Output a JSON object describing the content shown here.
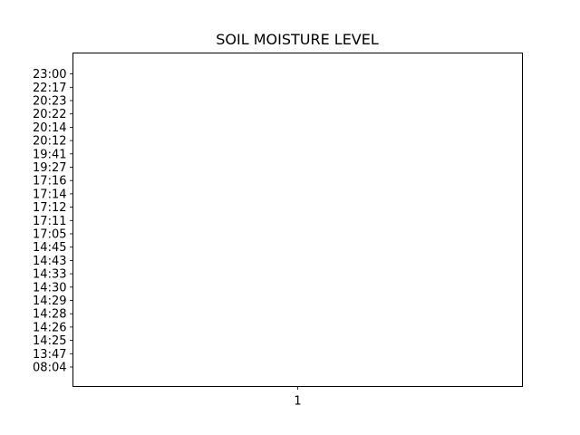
{
  "chart_data": {
    "type": "scatter",
    "title": "SOIL MOISTURE LEVEL",
    "xlabel": "",
    "ylabel": "",
    "x_ticks": [
      "1"
    ],
    "y_ticks": [
      "08:04",
      "13:47",
      "14:25",
      "14:26",
      "14:28",
      "14:29",
      "14:30",
      "14:33",
      "14:43",
      "14:45",
      "17:05",
      "17:11",
      "17:12",
      "17:14",
      "17:16",
      "19:27",
      "19:41",
      "20:12",
      "20:14",
      "20:22",
      "20:23",
      "22:17",
      "23:00"
    ],
    "series": [],
    "grid": false,
    "legend": "none"
  }
}
